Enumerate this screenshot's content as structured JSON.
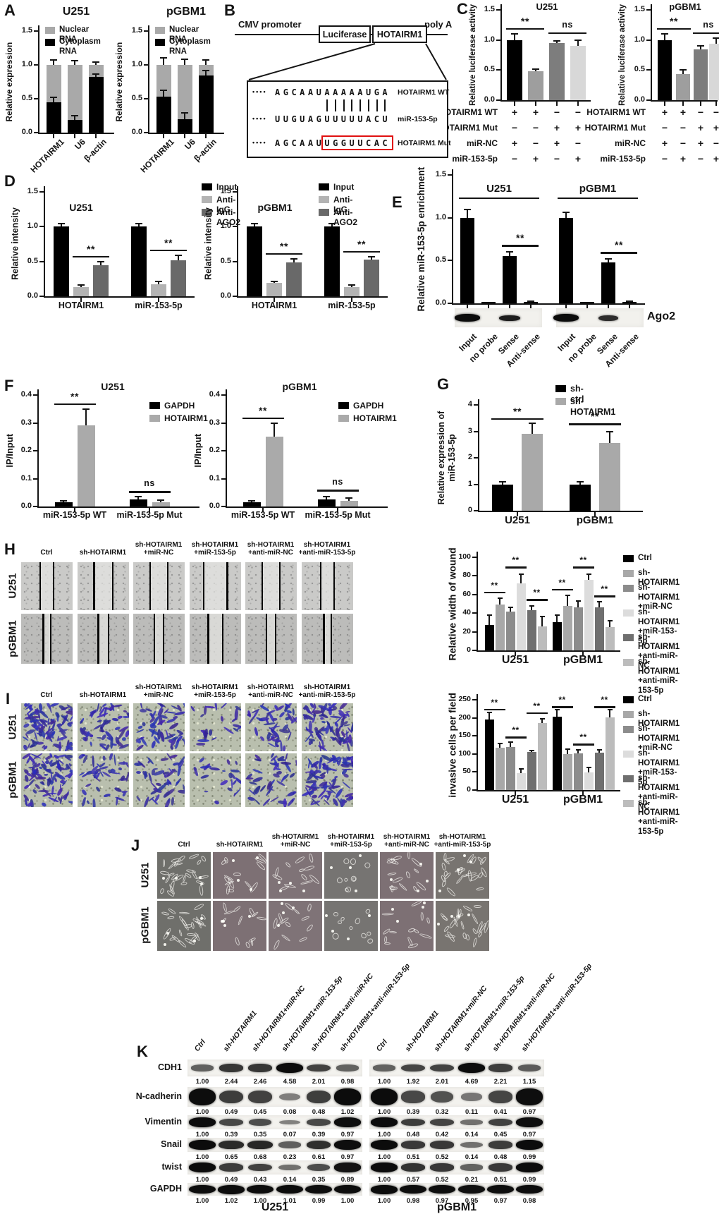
{
  "panel_labels": {
    "A": "A",
    "B": "B",
    "C": "C",
    "D": "D",
    "E": "E",
    "F": "F",
    "G": "G",
    "H": "H",
    "I": "I",
    "J": "J",
    "K": "K"
  },
  "cell_lines": [
    "U251",
    "pGBM1"
  ],
  "treatments": [
    "Ctrl",
    "sh-HOTAIRM1",
    "sh-HOTAIRM1\n+miR-NC",
    "sh-HOTAIRM1\n+miR-153-5p",
    "sh-HOTAIRM1\n+anti-miR-NC",
    "sh-HOTAIRM1\n+anti-miR-153-5p"
  ],
  "panel_b": {
    "promoter": "CMV promoter",
    "box1": "Luciferase",
    "box2": "HOTAIRM1",
    "polya": "poly A",
    "dots": "••••",
    "wt_seq": "AGCAAUAAAAAUGA",
    "wt_label": "HOTAIRM1 WT",
    "mir_seq": "UUGUAGUUUUUACU",
    "mir_label": "miR-153-5p",
    "mut_prefix": "AGCAAU",
    "mut_pair": "UGGUUCAC",
    "mut_label": "HOTAIRM1 Mut",
    "pair_count": 8,
    "mut_box_color": "#e01010"
  },
  "rip_blot": {
    "label": "Ago2"
  },
  "chart_data": [
    {
      "id": "A_U251",
      "type": "stacked_bar",
      "title": "U251",
      "ylabel": "Relative expression",
      "ylim": [
        0,
        1.5
      ],
      "yticks": [
        "0.0",
        "0.5",
        "1.0",
        "1.5"
      ],
      "categories": [
        "HOTAIRM1",
        "U6",
        "β-actin"
      ],
      "series": [
        {
          "name": "Nuclear RNA",
          "color": "#a9a9a9"
        },
        {
          "name": "Cytoplasm RNA",
          "color": "#000000"
        }
      ],
      "cytoplasm": [
        0.45,
        0.19,
        0.82
      ],
      "total": [
        1.0,
        1.0,
        1.0
      ],
      "cyto_err": [
        0.07,
        0.06,
        0.04
      ],
      "total_err": [
        0.07,
        0.06,
        0.04
      ]
    },
    {
      "id": "A_pGBM1",
      "type": "stacked_bar",
      "title": "pGBM1",
      "ylabel": "Relative expression",
      "ylim": [
        0,
        1.5
      ],
      "yticks": [
        "0.0",
        "0.5",
        "1.0",
        "1.5"
      ],
      "categories": [
        "HOTAIRM1",
        "U6",
        "β-actin"
      ],
      "series": [
        {
          "name": "Nuclear RNA",
          "color": "#a9a9a9"
        },
        {
          "name": "Cytoplasm RNA",
          "color": "#000000"
        }
      ],
      "cytoplasm": [
        0.53,
        0.2,
        0.84
      ],
      "total": [
        1.0,
        1.0,
        1.0
      ],
      "cyto_err": [
        0.1,
        0.09,
        0.08
      ],
      "total_err": [
        0.1,
        0.08,
        0.07
      ]
    },
    {
      "id": "C_U251",
      "type": "bar",
      "title": "U251",
      "ylabel": "Relative luciferase activity",
      "ylim": [
        0,
        1.5
      ],
      "yticks": [
        "0.0",
        "0.5",
        "1.0",
        "1.5"
      ],
      "values": [
        1.0,
        0.48,
        0.95,
        0.9
      ],
      "errors": [
        0.1,
        0.03,
        0.04,
        0.1
      ],
      "colors": [
        "#000000",
        "#9e9e9e",
        "#7d7d7d",
        "#d8d8d8"
      ],
      "sigs": [
        {
          "b1": 0,
          "b2": 1,
          "y": 1.2,
          "label": "**"
        },
        {
          "b1": 2,
          "b2": 3,
          "y": 1.13,
          "label": "ns"
        }
      ],
      "matrix": {
        "rows": [
          {
            "label": "HOTAIRM1 WT",
            "cells": [
              "+",
              "+",
              "−",
              "−"
            ]
          },
          {
            "label": "HOTAIRM1 Mut",
            "cells": [
              "−",
              "−",
              "+",
              "+"
            ]
          },
          {
            "label": "miR-NC",
            "cells": [
              "+",
              "−",
              "+",
              "−"
            ]
          },
          {
            "label": "miR-153-5p",
            "cells": [
              "−",
              "+",
              "−",
              "+"
            ]
          }
        ]
      }
    },
    {
      "id": "C_pGBM1",
      "type": "bar",
      "title": "pGBM1",
      "ylabel": "Relative luciferase activity",
      "ylim": [
        0,
        1.5
      ],
      "yticks": [
        "0.0",
        "0.5",
        "1.0",
        "1.5"
      ],
      "values": [
        1.0,
        0.43,
        0.84,
        0.94
      ],
      "errors": [
        0.1,
        0.07,
        0.06,
        0.09
      ],
      "colors": [
        "#000000",
        "#9e9e9e",
        "#7d7d7d",
        "#d8d8d8"
      ],
      "sigs": [
        {
          "b1": 0,
          "b2": 1,
          "y": 1.2,
          "label": "**"
        },
        {
          "b1": 2,
          "b2": 3,
          "y": 1.13,
          "label": "ns"
        }
      ],
      "matrix": {
        "rows": [
          {
            "label": "HOTAIRM1 WT",
            "cells": [
              "+",
              "+",
              "−",
              "−"
            ]
          },
          {
            "label": "HOTAIRM1 Mut",
            "cells": [
              "−",
              "−",
              "+",
              "+"
            ]
          },
          {
            "label": "miR-NC",
            "cells": [
              "+",
              "−",
              "+",
              "−"
            ]
          },
          {
            "label": "miR-153-5p",
            "cells": [
              "−",
              "+",
              "−",
              "+"
            ]
          }
        ]
      }
    },
    {
      "id": "D_U251",
      "type": "grouped_bar",
      "title": "U251",
      "ylabel": "Relative intensity",
      "ylim": [
        0,
        1.5
      ],
      "yticks": [
        "0.0",
        "0.5",
        "1.0",
        "1.5"
      ],
      "categories": [
        "HOTAIRM1",
        "miR-153-5p"
      ],
      "series": [
        {
          "name": "Input",
          "color": "#000000"
        },
        {
          "name": "Anti-IgG",
          "color": "#b3b3b3"
        },
        {
          "name": "Anti-AGO2",
          "color": "#696969"
        }
      ],
      "values": [
        [
          1.0,
          0.13,
          0.45
        ],
        [
          1.0,
          0.17,
          0.52
        ]
      ],
      "errors": [
        [
          0.04,
          0.03,
          0.05
        ],
        [
          0.04,
          0.04,
          0.07
        ]
      ],
      "sigs": [
        {
          "b1": 1,
          "b2": 2,
          "y": 0.58,
          "label": "**"
        },
        {
          "b1": 4,
          "b2": 5,
          "y": 0.67,
          "label": "**"
        }
      ]
    },
    {
      "id": "D_pGBM1",
      "type": "grouped_bar",
      "title": "pGBM1",
      "ylabel": "Relative intensity",
      "ylim": [
        0,
        1.5
      ],
      "yticks": [
        "0.0",
        "0.5",
        "1.0",
        "1.5"
      ],
      "categories": [
        "HOTAIRM1",
        "miR-153-5p"
      ],
      "series": [
        {
          "name": "Input",
          "color": "#000000"
        },
        {
          "name": "Anti-IgG",
          "color": "#b3b3b3"
        },
        {
          "name": "Anti-AGO2",
          "color": "#696969"
        }
      ],
      "values": [
        [
          1.0,
          0.19,
          0.49
        ],
        [
          1.0,
          0.13,
          0.53
        ]
      ],
      "errors": [
        [
          0.04,
          0.02,
          0.05
        ],
        [
          0.04,
          0.03,
          0.04
        ]
      ],
      "sigs": [
        {
          "b1": 1,
          "b2": 2,
          "y": 0.62,
          "label": "**"
        },
        {
          "b1": 4,
          "b2": 5,
          "y": 0.65,
          "label": "**"
        }
      ]
    },
    {
      "id": "E",
      "type": "bar",
      "ylabel": "Relative miR-153-5p enrichment",
      "ylim": [
        0,
        1.5
      ],
      "yticks": [
        "0.0",
        "0.5",
        "1.0",
        "1.5"
      ],
      "bar_labels": [
        "Input",
        "no probe",
        "Sense",
        "Anti-sense",
        "Input",
        "no probe",
        "Sense",
        "Anti-sense"
      ],
      "values": [
        1.0,
        0.006,
        0.55,
        0.012,
        1.0,
        0.006,
        0.48,
        0.012
      ],
      "errors": [
        0.1,
        0,
        0.05,
        0.01,
        0.06,
        0,
        0.04,
        0.01
      ],
      "colors": [
        "#000000",
        "#000000",
        "#000000",
        "#000000",
        "#000000",
        "#000000",
        "#000000",
        "#000000"
      ],
      "sigs": [
        {
          "b1": 2,
          "b2": 3,
          "y": 0.68,
          "label": "**"
        },
        {
          "b1": 6,
          "b2": 7,
          "y": 0.6,
          "label": "**"
        }
      ],
      "overlines": [
        {
          "b1": 0,
          "b2": 3,
          "y": 1.24,
          "label": "U251"
        },
        {
          "b1": 4,
          "b2": 7,
          "y": 1.24,
          "label": "pGBM1"
        }
      ]
    },
    {
      "id": "F_U251",
      "type": "grouped_bar",
      "title": "U251",
      "ylabel": "IP/Input",
      "ylim": [
        0,
        0.4
      ],
      "yticks": [
        "0.0",
        "0.1",
        "0.2",
        "0.3",
        "0.4"
      ],
      "categories": [
        "miR-153-5p WT",
        "miR-153-5p Mut"
      ],
      "series": [
        {
          "name": "GAPDH",
          "color": "#000000"
        },
        {
          "name": "HOTAIRM1",
          "color": "#aaaaaa"
        }
      ],
      "values": [
        [
          0.015,
          0.29
        ],
        [
          0.025,
          0.016
        ]
      ],
      "errors": [
        [
          0.006,
          0.06
        ],
        [
          0.01,
          0.008
        ]
      ],
      "sigs": [
        {
          "b1": 0,
          "b2": 1,
          "y": 0.37,
          "label": "**"
        },
        {
          "b1": 2,
          "b2": 3,
          "y": 0.055,
          "label": "ns"
        }
      ]
    },
    {
      "id": "F_pGBM1",
      "type": "grouped_bar",
      "title": "pGBM1",
      "ylabel": "IP/Input",
      "ylim": [
        0,
        0.4
      ],
      "yticks": [
        "0.0",
        "0.1",
        "0.2",
        "0.3",
        "0.4"
      ],
      "categories": [
        "miR-153-5p WT",
        "miR-153-5p Mut"
      ],
      "series": [
        {
          "name": "GAPDH",
          "color": "#000000"
        },
        {
          "name": "HOTAIRM1",
          "color": "#aaaaaa"
        }
      ],
      "values": [
        [
          0.015,
          0.25
        ],
        [
          0.025,
          0.02
        ]
      ],
      "errors": [
        [
          0.006,
          0.05
        ],
        [
          0.01,
          0.01
        ]
      ],
      "sigs": [
        {
          "b1": 0,
          "b2": 1,
          "y": 0.32,
          "label": "**"
        },
        {
          "b1": 2,
          "b2": 3,
          "y": 0.06,
          "label": "ns"
        }
      ]
    },
    {
      "id": "G",
      "type": "grouped_bar",
      "ylabel": "Relative expression of\nmiR-153-5p",
      "ylim": [
        0,
        4
      ],
      "yticks": [
        "0",
        "1",
        "2",
        "3",
        "4"
      ],
      "categories": [
        "U251",
        "pGBM1"
      ],
      "series": [
        {
          "name": "sh-ctrl",
          "color": "#000000"
        },
        {
          "name": "sh-HOTAIRM1",
          "color": "#a9a9a9"
        }
      ],
      "values": [
        [
          1.0,
          2.9
        ],
        [
          1.0,
          2.55
        ]
      ],
      "errors": [
        [
          0.1,
          0.4
        ],
        [
          0.1,
          0.45
        ]
      ],
      "sigs": [
        {
          "b1": 0,
          "b2": 1,
          "y": 3.5,
          "label": "**"
        },
        {
          "b1": 2,
          "b2": 3,
          "y": 3.3,
          "label": "**"
        }
      ]
    },
    {
      "id": "H_quant",
      "type": "grouped_bar",
      "ylabel": "Relative width of wound",
      "ylim": [
        0,
        100
      ],
      "yticks": [
        "0",
        "20",
        "40",
        "60",
        "80",
        "100"
      ],
      "categories": [
        "U251",
        "pGBM1"
      ],
      "series": [
        {
          "name": "Ctrl",
          "color": "#000000"
        },
        {
          "name": "sh-HOTAIRM1",
          "color": "#a8a8a8"
        },
        {
          "name": "sh-HOTAIRM1\n+miR-NC",
          "color": "#8c8c8c"
        },
        {
          "name": "sh-HOTAIRM1\n+miR-153-5p",
          "color": "#dcdcdc"
        },
        {
          "name": "sh-HOTAIRM1\n+anti-miR-NC",
          "color": "#6f6f6f"
        },
        {
          "name": "sh-HOTAIRM1\n+anti-miR-153-5p",
          "color": "#bcbcbc"
        }
      ],
      "values": [
        [
          27,
          49,
          42,
          72,
          43,
          26
        ],
        [
          30,
          48,
          46,
          76,
          46,
          25
        ]
      ],
      "errors": [
        [
          11,
          7,
          4,
          10,
          5,
          10
        ],
        [
          8,
          11,
          7,
          6,
          6,
          7
        ]
      ],
      "sigs": [
        {
          "b1": 0,
          "b2": 1,
          "y": 63,
          "label": "**"
        },
        {
          "b1": 2,
          "b2": 3,
          "y": 90,
          "label": "**"
        },
        {
          "b1": 4,
          "b2": 5,
          "y": 55,
          "label": "**"
        },
        {
          "b1": 6,
          "b2": 7,
          "y": 66,
          "label": "**"
        },
        {
          "b1": 8,
          "b2": 9,
          "y": 90,
          "label": "**"
        },
        {
          "b1": 10,
          "b2": 11,
          "y": 59,
          "label": "**"
        }
      ]
    },
    {
      "id": "I_quant",
      "type": "grouped_bar",
      "ylabel": "invasive cells per field",
      "ylim": [
        0,
        250
      ],
      "yticks": [
        "0",
        "50",
        "100",
        "150",
        "200",
        "250"
      ],
      "categories": [
        "U251",
        "pGBM1"
      ],
      "series": [
        {
          "name": "Ctrl",
          "color": "#000000"
        },
        {
          "name": "sh-HOTAIRM1",
          "color": "#a8a8a8"
        },
        {
          "name": "sh-HOTAIRM1\n+miR-NC",
          "color": "#8c8c8c"
        },
        {
          "name": "sh-HOTAIRM1\n+miR-153-5p",
          "color": "#dcdcdc"
        },
        {
          "name": "sh-HOTAIRM1\n+anti-miR-NC",
          "color": "#6f6f6f"
        },
        {
          "name": "sh-HOTAIRM1\n+anti-miR-153-5p",
          "color": "#bcbcbc"
        }
      ],
      "values": [
        [
          195,
          117,
          120,
          47,
          105,
          186
        ],
        [
          204,
          99,
          102,
          49,
          103,
          202
        ]
      ],
      "errors": [
        [
          20,
          12,
          12,
          12,
          5,
          12
        ],
        [
          18,
          15,
          10,
          14,
          8,
          20
        ]
      ],
      "sigs": [
        {
          "b1": 0,
          "b2": 1,
          "y": 225,
          "label": "**"
        },
        {
          "b1": 2,
          "b2": 3,
          "y": 148,
          "label": "**"
        },
        {
          "b1": 4,
          "b2": 5,
          "y": 215,
          "label": "**"
        },
        {
          "b1": 6,
          "b2": 7,
          "y": 232,
          "label": "**"
        },
        {
          "b1": 8,
          "b2": 9,
          "y": 128,
          "label": "**"
        },
        {
          "b1": 10,
          "b2": 11,
          "y": 232,
          "label": "**"
        }
      ]
    }
  ],
  "western": {
    "lane_labels": [
      "Ctrl",
      "sh-HOTAIRM1",
      "sh-HOTAIRM1+miR-NC",
      "sh-HOTAIRM1+miR-153-5p",
      "sh-HOTAIRM1+anti-miR-NC",
      "sh-HOTAIRM1+anti-miR-153-5p"
    ],
    "blocks": [
      "U251",
      "pGBM1"
    ],
    "rows": [
      {
        "protein": "CDH1",
        "values": [
          [
            1.0,
            2.44,
            2.46,
            4.58,
            2.01,
            0.98
          ],
          [
            1.0,
            1.92,
            2.01,
            4.69,
            2.21,
            1.15
          ]
        ]
      },
      {
        "protein": "N-cadherin",
        "values": [
          [
            1.0,
            0.49,
            0.45,
            0.08,
            0.48,
            1.02
          ],
          [
            1.0,
            0.39,
            0.32,
            0.11,
            0.41,
            0.97
          ]
        ]
      },
      {
        "protein": "Vimentin",
        "values": [
          [
            1.0,
            0.39,
            0.35,
            0.07,
            0.39,
            0.97
          ],
          [
            1.0,
            0.48,
            0.42,
            0.14,
            0.45,
            0.97
          ]
        ]
      },
      {
        "protein": "Snail",
        "values": [
          [
            1.0,
            0.65,
            0.68,
            0.23,
            0.61,
            0.97
          ],
          [
            1.0,
            0.51,
            0.52,
            0.14,
            0.48,
            0.99
          ]
        ]
      },
      {
        "protein": "twist",
        "values": [
          [
            1.0,
            0.49,
            0.43,
            0.14,
            0.35,
            0.89
          ],
          [
            1.0,
            0.57,
            0.52,
            0.21,
            0.51,
            0.99
          ]
        ]
      },
      {
        "protein": "GAPDH",
        "values": [
          [
            1.0,
            1.02,
            1.0,
            1.01,
            0.99,
            1.0
          ],
          [
            1.0,
            0.98,
            0.97,
            0.95,
            0.97,
            0.98
          ]
        ]
      }
    ]
  },
  "images": {
    "wound_lines": {
      "U251": [
        [
          37,
          63
        ],
        [
          32,
          68
        ],
        [
          33,
          67
        ],
        [
          27,
          73
        ],
        [
          33,
          67
        ],
        [
          37,
          63
        ]
      ],
      "pGBM1": [
        [
          43,
          57
        ],
        [
          40,
          60
        ],
        [
          41,
          59
        ],
        [
          36,
          64
        ],
        [
          41,
          59
        ],
        [
          43,
          57
        ]
      ]
    },
    "invasion_count": {
      "U251": [
        88,
        53,
        54,
        21,
        47,
        84
      ],
      "pGBM1": [
        90,
        45,
        46,
        22,
        46,
        90
      ]
    },
    "morph_count": {
      "U251": [
        26,
        14,
        12,
        9,
        16,
        24
      ],
      "pGBM1": [
        22,
        12,
        12,
        10,
        13,
        22
      ]
    },
    "morph_bg": [
      "#6f6f6b",
      "#7d7074",
      "#7f7377",
      "#767472",
      "#7d7074",
      "#787470"
    ]
  }
}
